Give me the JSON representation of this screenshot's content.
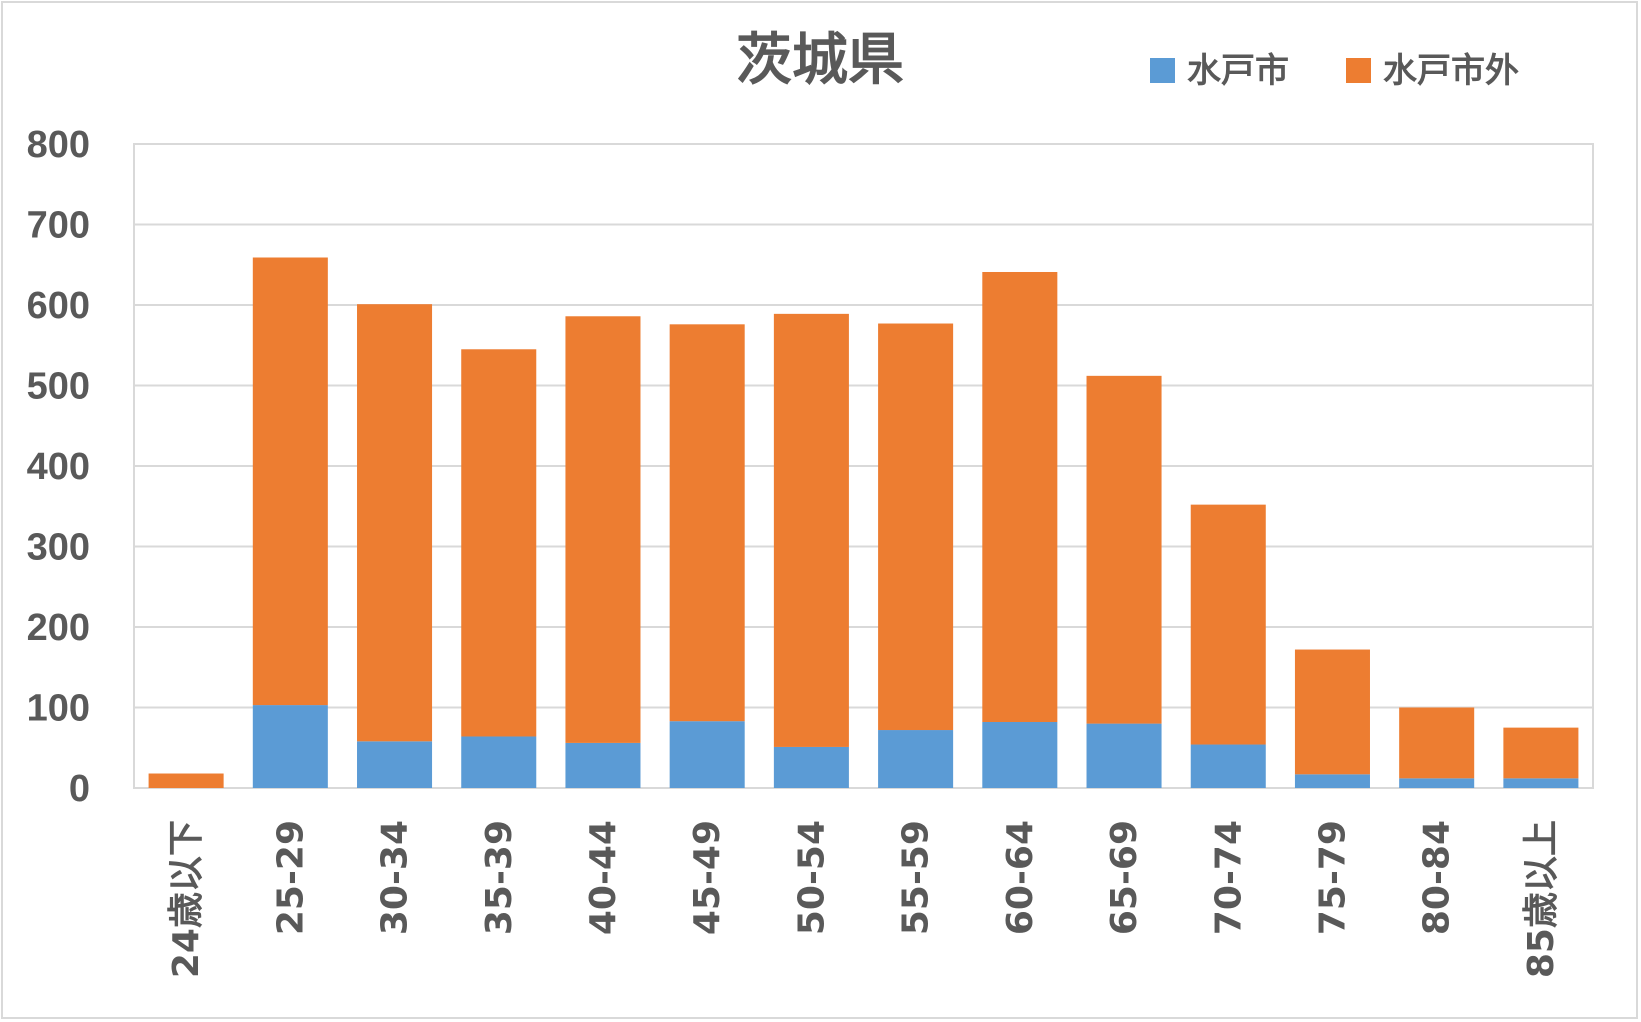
{
  "chart_data": {
    "type": "bar",
    "stacked": true,
    "title": "茨城県",
    "categories": [
      "24歳以下",
      "25-29",
      "30-34",
      "35-39",
      "40-44",
      "45-49",
      "50-54",
      "55-59",
      "60-64",
      "65-69",
      "70-74",
      "75-79",
      "80-84",
      "85歳以上"
    ],
    "series": [
      {
        "name": "水戸市",
        "color": "#5b9bd5",
        "values": [
          0,
          103,
          58,
          64,
          56,
          83,
          51,
          72,
          82,
          80,
          54,
          17,
          12,
          12
        ]
      },
      {
        "name": "水戸市外",
        "color": "#ed7d31",
        "values": [
          18,
          556,
          543,
          481,
          530,
          493,
          538,
          505,
          559,
          432,
          298,
          155,
          88,
          63
        ]
      }
    ],
    "yticks": [
      "0",
      "100",
      "200",
      "300",
      "400",
      "500",
      "600",
      "700",
      "800"
    ],
    "ylim": [
      0,
      800
    ],
    "grid": true,
    "legend_position": "top-right"
  }
}
